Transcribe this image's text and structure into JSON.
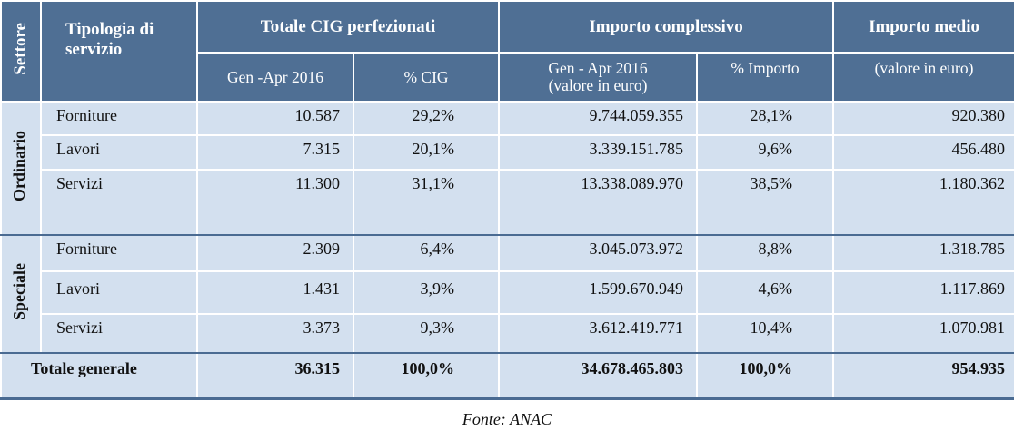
{
  "header": {
    "settore": "Settore",
    "tipologia": "Tipologia di servizio",
    "totale_cig": "Totale CIG perfezionati",
    "importo_complessivo": "Importo complessivo",
    "importo_medio": "Importo medio",
    "sub_gen_apr": "Gen -Apr 2016",
    "sub_pct_cig": "% CIG",
    "sub_gen_apr_valore_1": "Gen - Apr 2016",
    "sub_gen_apr_valore_2": "(valore in euro)",
    "sub_pct_importo": "% Importo",
    "sub_valore_euro": "(valore in euro)"
  },
  "sectors": [
    {
      "name": "Ordinario",
      "rows": [
        {
          "tipologia": "Forniture",
          "cig": "10.587",
          "pct_cig": "29,2%",
          "importo": "9.744.059.355",
          "pct_importo": "28,1%",
          "medio": "920.380"
        },
        {
          "tipologia": "Lavori",
          "cig": "7.315",
          "pct_cig": "20,1%",
          "importo": "3.339.151.785",
          "pct_importo": "9,6%",
          "medio": "456.480"
        },
        {
          "tipologia": "Servizi",
          "cig": "11.300",
          "pct_cig": "31,1%",
          "importo": "13.338.089.970",
          "pct_importo": "38,5%",
          "medio": "1.180.362"
        }
      ]
    },
    {
      "name": "Speciale",
      "rows": [
        {
          "tipologia": "Forniture",
          "cig": "2.309",
          "pct_cig": "6,4%",
          "importo": "3.045.073.972",
          "pct_importo": "8,8%",
          "medio": "1.318.785"
        },
        {
          "tipologia": "Lavori",
          "cig": "1.431",
          "pct_cig": "3,9%",
          "importo": "1.599.670.949",
          "pct_importo": "4,6%",
          "medio": "1.117.869"
        },
        {
          "tipologia": "Servizi",
          "cig": "3.373",
          "pct_cig": "9,3%",
          "importo": "3.612.419.771",
          "pct_importo": "10,4%",
          "medio": "1.070.981"
        }
      ]
    }
  ],
  "total": {
    "label": "Totale generale",
    "cig": "36.315",
    "pct_cig": "100,0%",
    "importo": "34.678.465.803",
    "pct_importo": "100,0%",
    "medio": "954.935"
  },
  "source": "Fonte: ANAC",
  "colors": {
    "header_bg": "#4f6f94",
    "body_bg": "#d3e0ef"
  }
}
